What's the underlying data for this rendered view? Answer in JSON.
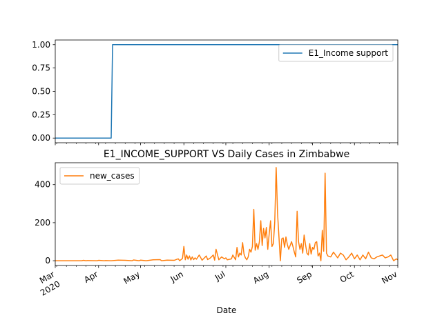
{
  "chart_data": [
    {
      "type": "line",
      "title": "",
      "xlabel": "",
      "ylabel": "",
      "ylim": [
        -0.05,
        1.05
      ],
      "yticks": [
        0.0,
        0.25,
        0.5,
        0.75,
        1.0
      ],
      "ytick_labels": [
        "0.00",
        "0.25",
        "0.50",
        "0.75",
        "1.00"
      ],
      "xlim": [
        "2020-03-01",
        "2020-11-01"
      ],
      "legend_position": "upper-right",
      "grid": false,
      "series": [
        {
          "name": "E1_Income support",
          "color": "#1f77b4",
          "x": [
            "2020-03-01",
            "2020-04-10",
            "2020-04-11",
            "2020-11-01"
          ],
          "y": [
            0,
            0,
            1,
            1
          ]
        }
      ]
    },
    {
      "type": "line",
      "title": "E1_INCOME_SUPPORT VS Daily Cases in Zimbabwe",
      "xlabel": "Date",
      "ylabel": "",
      "ylim": [
        -25,
        515
      ],
      "yticks": [
        0,
        200,
        400
      ],
      "ytick_labels": [
        "0",
        "200",
        "400"
      ],
      "xlim": [
        "2020-03-01",
        "2020-11-01"
      ],
      "xticks": [
        "2020-03-01",
        "2020-04-01",
        "2020-05-01",
        "2020-06-01",
        "2020-07-01",
        "2020-08-01",
        "2020-09-01",
        "2020-10-01",
        "2020-11-01"
      ],
      "xtick_labels": [
        "Mar",
        "Apr",
        "May",
        "Jun",
        "Jul",
        "Aug",
        "Sep",
        "Oct",
        "Nov"
      ],
      "xtick_year_label": "2020",
      "legend_position": "upper-left",
      "grid": false,
      "series": [
        {
          "name": "new_cases",
          "color": "#ff7f0e",
          "x": [
            "2020-03-01",
            "2020-03-20",
            "2020-03-21",
            "2020-03-23",
            "2020-03-24",
            "2020-03-31",
            "2020-04-01",
            "2020-04-05",
            "2020-04-06",
            "2020-04-10",
            "2020-04-15",
            "2020-04-20",
            "2020-04-25",
            "2020-04-26",
            "2020-04-30",
            "2020-05-01",
            "2020-05-05",
            "2020-05-10",
            "2020-05-15",
            "2020-05-16",
            "2020-05-20",
            "2020-05-25",
            "2020-05-28",
            "2020-05-29",
            "2020-05-30",
            "2020-05-31",
            "2020-06-01",
            "2020-06-02",
            "2020-06-03",
            "2020-06-04",
            "2020-06-05",
            "2020-06-06",
            "2020-06-07",
            "2020-06-08",
            "2020-06-09",
            "2020-06-10",
            "2020-06-12",
            "2020-06-14",
            "2020-06-15",
            "2020-06-17",
            "2020-06-18",
            "2020-06-20",
            "2020-06-22",
            "2020-06-23",
            "2020-06-24",
            "2020-06-26",
            "2020-06-28",
            "2020-06-30",
            "2020-07-01",
            "2020-07-02",
            "2020-07-04",
            "2020-07-05",
            "2020-07-06",
            "2020-07-08",
            "2020-07-09",
            "2020-07-10",
            "2020-07-11",
            "2020-07-12",
            "2020-07-13",
            "2020-07-14",
            "2020-07-15",
            "2020-07-16",
            "2020-07-17",
            "2020-07-18",
            "2020-07-19",
            "2020-07-20",
            "2020-07-21",
            "2020-07-22",
            "2020-07-23",
            "2020-07-24",
            "2020-07-25",
            "2020-07-26",
            "2020-07-27",
            "2020-07-28",
            "2020-07-29",
            "2020-07-30",
            "2020-07-31",
            "2020-08-01",
            "2020-08-02",
            "2020-08-03",
            "2020-08-04",
            "2020-08-05",
            "2020-08-06",
            "2020-08-07",
            "2020-08-08",
            "2020-08-09",
            "2020-08-10",
            "2020-08-11",
            "2020-08-12",
            "2020-08-13",
            "2020-08-14",
            "2020-08-15",
            "2020-08-16",
            "2020-08-17",
            "2020-08-18",
            "2020-08-19",
            "2020-08-20",
            "2020-08-21",
            "2020-08-22",
            "2020-08-23",
            "2020-08-24",
            "2020-08-25",
            "2020-08-26",
            "2020-08-27",
            "2020-08-28",
            "2020-08-29",
            "2020-08-30",
            "2020-08-31",
            "2020-09-01",
            "2020-09-02",
            "2020-09-03",
            "2020-09-04",
            "2020-09-05",
            "2020-09-06",
            "2020-09-07",
            "2020-09-08",
            "2020-09-09",
            "2020-09-10",
            "2020-09-11",
            "2020-09-12",
            "2020-09-14",
            "2020-09-16",
            "2020-09-18",
            "2020-09-19",
            "2020-09-21",
            "2020-09-23",
            "2020-09-25",
            "2020-09-27",
            "2020-09-29",
            "2020-10-01",
            "2020-10-03",
            "2020-10-05",
            "2020-10-07",
            "2020-10-09",
            "2020-10-11",
            "2020-10-13",
            "2020-10-15",
            "2020-10-17",
            "2020-10-19",
            "2020-10-21",
            "2020-10-23",
            "2020-10-25",
            "2020-10-27",
            "2020-10-29",
            "2020-10-31",
            "2020-11-01"
          ],
          "y": [
            0,
            0,
            2,
            0,
            1,
            0,
            2,
            0,
            1,
            0,
            3,
            2,
            0,
            4,
            0,
            3,
            0,
            5,
            6,
            0,
            3,
            2,
            10,
            0,
            6,
            12,
            75,
            5,
            30,
            8,
            25,
            4,
            20,
            6,
            15,
            8,
            30,
            3,
            10,
            25,
            6,
            15,
            30,
            3,
            60,
            5,
            20,
            10,
            15,
            5,
            8,
            10,
            30,
            5,
            70,
            20,
            40,
            30,
            95,
            35,
            15,
            5,
            20,
            60,
            45,
            75,
            270,
            55,
            90,
            60,
            100,
            210,
            80,
            170,
            120,
            175,
            60,
            140,
            210,
            75,
            90,
            205,
            490,
            250,
            125,
            0,
            115,
            120,
            70,
            125,
            85,
            60,
            80,
            100,
            75,
            45,
            20,
            260,
            100,
            60,
            90,
            40,
            135,
            85,
            40,
            30,
            90,
            35,
            70,
            60,
            95,
            100,
            25,
            40,
            0,
            160,
            50,
            460,
            40,
            25,
            20,
            45,
            25,
            15,
            40,
            30,
            5,
            20,
            40,
            10,
            30,
            5,
            30,
            10,
            45,
            15,
            10,
            20,
            25,
            30,
            15,
            20,
            30,
            0,
            10,
            5
          ]
        }
      ]
    }
  ]
}
